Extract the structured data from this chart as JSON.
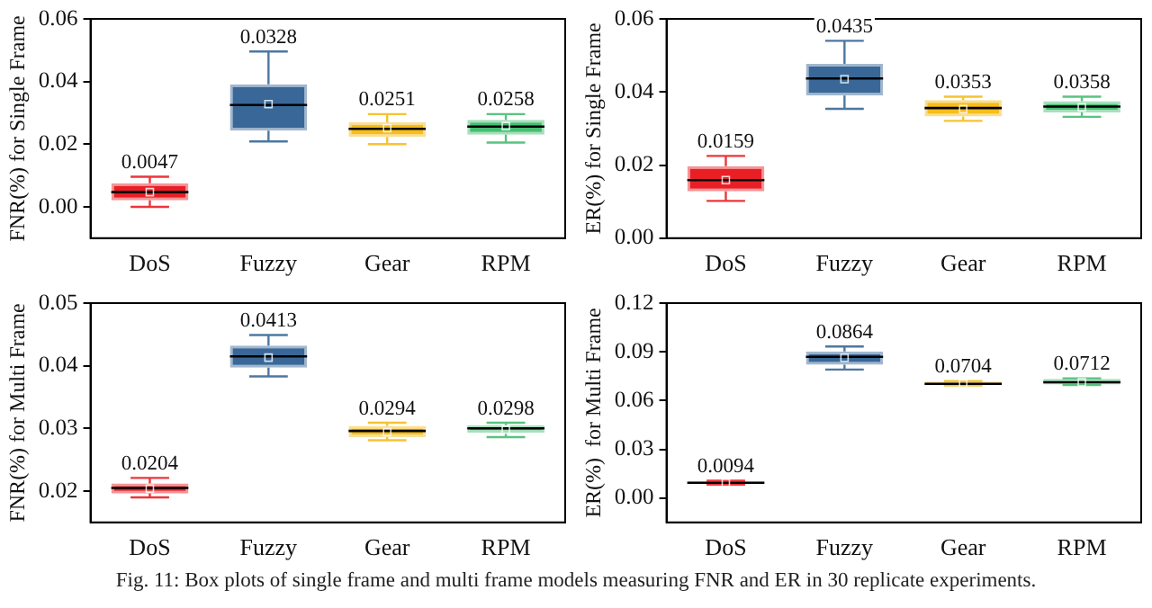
{
  "chart_data": [
    {
      "type": "box",
      "ylabel": "FNR(%) for Single Frame",
      "categories": [
        "DoS",
        "Fuzzy",
        "Gear",
        "RPM"
      ],
      "colors": [
        "#e8131a",
        "#2e5f91",
        "#f5b90f",
        "#3cb96a"
      ],
      "ylim": [
        -0.01,
        0.06
      ],
      "yticks": [
        {
          "value": 0,
          "label": "0.00"
        },
        {
          "value": 0.02,
          "label": "0.02"
        },
        {
          "value": 0.04,
          "label": "0.04"
        },
        {
          "value": 0.06,
          "label": "0.06"
        }
      ],
      "boxes": [
        {
          "low": 0.0,
          "q1": 0.0021,
          "median": 0.0047,
          "q3": 0.0075,
          "high": 0.0096,
          "mean": 0.0047
        },
        {
          "low": 0.0209,
          "q1": 0.0243,
          "median": 0.0325,
          "q3": 0.0391,
          "high": 0.0496,
          "mean": 0.0328
        },
        {
          "low": 0.02,
          "q1": 0.0223,
          "median": 0.0249,
          "q3": 0.027,
          "high": 0.0296,
          "mean": 0.0251
        },
        {
          "low": 0.0205,
          "q1": 0.023,
          "median": 0.0256,
          "q3": 0.0278,
          "high": 0.0296,
          "mean": 0.0258
        }
      ],
      "value_labels": [
        "0.0047",
        "0.0328",
        "0.0251",
        "0.0258"
      ]
    },
    {
      "type": "box",
      "ylabel": "ER(%) for Single Frame",
      "categories": [
        "DoS",
        "Fuzzy",
        "Gear",
        "RPM"
      ],
      "colors": [
        "#e8131a",
        "#2e5f91",
        "#f5b90f",
        "#3cb96a"
      ],
      "ylim": [
        0,
        0.06
      ],
      "yticks": [
        {
          "value": 0,
          "label": "0.00"
        },
        {
          "value": 0.02,
          "label": "0.02"
        },
        {
          "value": 0.04,
          "label": "0.04"
        },
        {
          "value": 0.06,
          "label": "0.06"
        }
      ],
      "boxes": [
        {
          "low": 0.0102,
          "q1": 0.0128,
          "median": 0.0159,
          "q3": 0.0197,
          "high": 0.0225,
          "mean": 0.0159
        },
        {
          "low": 0.0354,
          "q1": 0.039,
          "median": 0.0437,
          "q3": 0.0477,
          "high": 0.054,
          "mean": 0.0435
        },
        {
          "low": 0.0321,
          "q1": 0.0333,
          "median": 0.0356,
          "q3": 0.0378,
          "high": 0.0387,
          "mean": 0.0353
        },
        {
          "low": 0.0332,
          "q1": 0.0344,
          "median": 0.036,
          "q3": 0.0375,
          "high": 0.0387,
          "mean": 0.0358
        }
      ],
      "value_labels": [
        "0.0159",
        "0.0435",
        "0.0353",
        "0.0358"
      ]
    },
    {
      "type": "box",
      "ylabel": "FNR(%) for Multi Frame",
      "categories": [
        "DoS",
        "Fuzzy",
        "Gear",
        "RPM"
      ],
      "colors": [
        "#e8131a",
        "#2e5f91",
        "#f5b90f",
        "#3cb96a"
      ],
      "ylim": [
        0.015,
        0.05
      ],
      "yticks": [
        {
          "value": 0.02,
          "label": "0.02"
        },
        {
          "value": 0.03,
          "label": "0.03"
        },
        {
          "value": 0.04,
          "label": "0.04"
        },
        {
          "value": 0.05,
          "label": "0.05"
        }
      ],
      "boxes": [
        {
          "low": 0.019,
          "q1": 0.0196,
          "median": 0.0205,
          "q3": 0.0212,
          "high": 0.0221,
          "mean": 0.0204
        },
        {
          "low": 0.0383,
          "q1": 0.0397,
          "median": 0.0415,
          "q3": 0.0432,
          "high": 0.0449,
          "mean": 0.0413
        },
        {
          "low": 0.0281,
          "q1": 0.0286,
          "median": 0.0296,
          "q3": 0.0304,
          "high": 0.0309,
          "mean": 0.0294
        },
        {
          "low": 0.0286,
          "q1": 0.0293,
          "median": 0.03,
          "q3": 0.0305,
          "high": 0.0309,
          "mean": 0.0298
        }
      ],
      "value_labels": [
        "0.0204",
        "0.0413",
        "0.0294",
        "0.0298"
      ]
    },
    {
      "type": "box",
      "ylabel": "ER(%)  for Multi Frame",
      "categories": [
        "DoS",
        "Fuzzy",
        "Gear",
        "RPM"
      ],
      "colors": [
        "#e8131a",
        "#2e5f91",
        "#f5b90f",
        "#3cb96a"
      ],
      "ylim": [
        -0.015,
        0.12
      ],
      "yticks": [
        {
          "value": 0,
          "label": "0.00"
        },
        {
          "value": 0.03,
          "label": "0.03"
        },
        {
          "value": 0.06,
          "label": "0.06"
        },
        {
          "value": 0.09,
          "label": "0.09"
        },
        {
          "value": 0.12,
          "label": "0.12"
        }
      ],
      "boxes": [
        {
          "low": 0.0082,
          "q1": 0.0085,
          "median": 0.0094,
          "q3": 0.0101,
          "high": 0.0106,
          "mean": 0.0094
        },
        {
          "low": 0.0791,
          "q1": 0.0821,
          "median": 0.0869,
          "q3": 0.0903,
          "high": 0.0933,
          "mean": 0.0864
        },
        {
          "low": 0.0693,
          "q1": 0.0696,
          "median": 0.0703,
          "q3": 0.0717,
          "high": 0.072,
          "mean": 0.0704
        },
        {
          "low": 0.0696,
          "q1": 0.0699,
          "median": 0.0713,
          "q3": 0.0733,
          "high": 0.0737,
          "mean": 0.0712
        }
      ],
      "value_labels": [
        "0.0094",
        "0.0864",
        "0.0704",
        "0.0712"
      ],
      "annotations": [
        "Fig. 11: Box plots of single frame and multi frame models measuring FNR and ER in 30 replicate experiments."
      ]
    }
  ]
}
